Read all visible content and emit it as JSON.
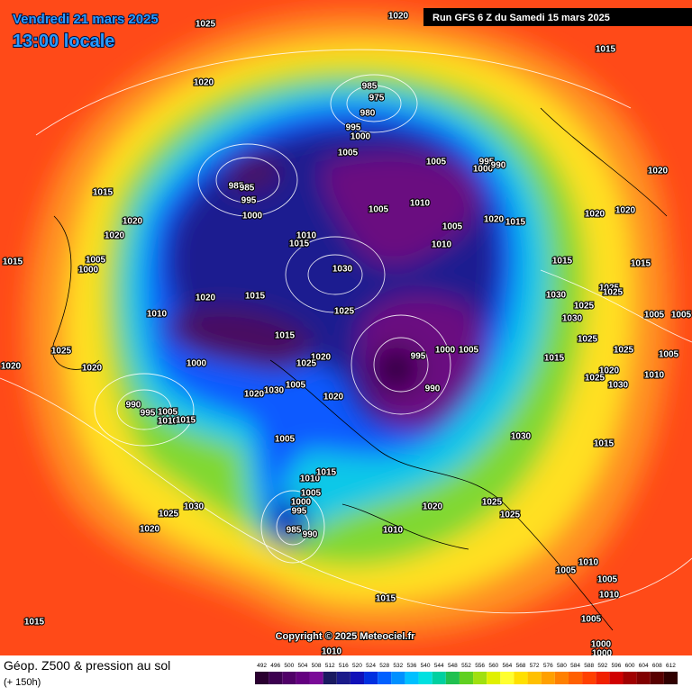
{
  "header": {
    "date": "Vendredi 21 mars 2025",
    "time": "13:00 locale",
    "run": "Run GFS 6 Z du Samedi 15 mars 2025"
  },
  "map": {
    "isobar_labels": [
      "1025",
      "1020",
      "1015",
      "1020",
      "985",
      "975",
      "980",
      "995",
      "1000",
      "1005",
      "1005",
      "995",
      "1000",
      "990",
      "1015",
      "985",
      "985",
      "995",
      "1000",
      "1005",
      "1010",
      "1020",
      "1020",
      "1020",
      "1015",
      "1020",
      "1020",
      "1020",
      "1005",
      "1010",
      "1015",
      "1010",
      "1015",
      "1005",
      "1000",
      "1030",
      "1015",
      "1015",
      "1020",
      "1015",
      "1030",
      "1025",
      "1025",
      "1010",
      "1025",
      "1025",
      "1030",
      "1005",
      "1005",
      "1015",
      "1025",
      "995",
      "1000",
      "1005",
      "1025",
      "1020",
      "1000",
      "1025",
      "1025",
      "1005",
      "1015",
      "1020",
      "1020",
      "1020",
      "1010",
      "1025",
      "990",
      "1030",
      "1030",
      "1005",
      "1020",
      "1020",
      "990",
      "995",
      "1005",
      "1010",
      "1015",
      "1005",
      "1030",
      "1015",
      "1010",
      "1015",
      "1005",
      "1000",
      "995",
      "1025",
      "1030",
      "1020",
      "1025",
      "1025",
      "1020",
      "985",
      "990",
      "1010",
      "1010",
      "1005",
      "1005",
      "1010",
      "1015",
      "1015",
      "1005",
      "1000",
      "1000",
      "1010"
    ],
    "copyright": "Copyright © 2025 Meteociel.fr"
  },
  "footer": {
    "title": "Géop. Z500 & pression au sol",
    "lead": "(+ 150h)",
    "scale": {
      "values": [
        492,
        496,
        500,
        504,
        508,
        512,
        516,
        520,
        524,
        528,
        532,
        536,
        540,
        544,
        548,
        552,
        556,
        560,
        564,
        568,
        572,
        576,
        580,
        584,
        588,
        592,
        596,
        600,
        604,
        608,
        612
      ],
      "colors": [
        "#2a0030",
        "#3c0050",
        "#500068",
        "#640080",
        "#7a0a98",
        "#1a1a60",
        "#1a1a8a",
        "#1010b8",
        "#0030e0",
        "#0060ff",
        "#0090ff",
        "#00c0ff",
        "#00e0e0",
        "#00d0a0",
        "#20c050",
        "#60d020",
        "#a0e010",
        "#e0f000",
        "#ffff30",
        "#ffe000",
        "#ffc000",
        "#ffa000",
        "#ff8000",
        "#ff6000",
        "#ff4000",
        "#f02000",
        "#d00000",
        "#a00000",
        "#800000",
        "#580000",
        "#300000"
      ]
    }
  }
}
